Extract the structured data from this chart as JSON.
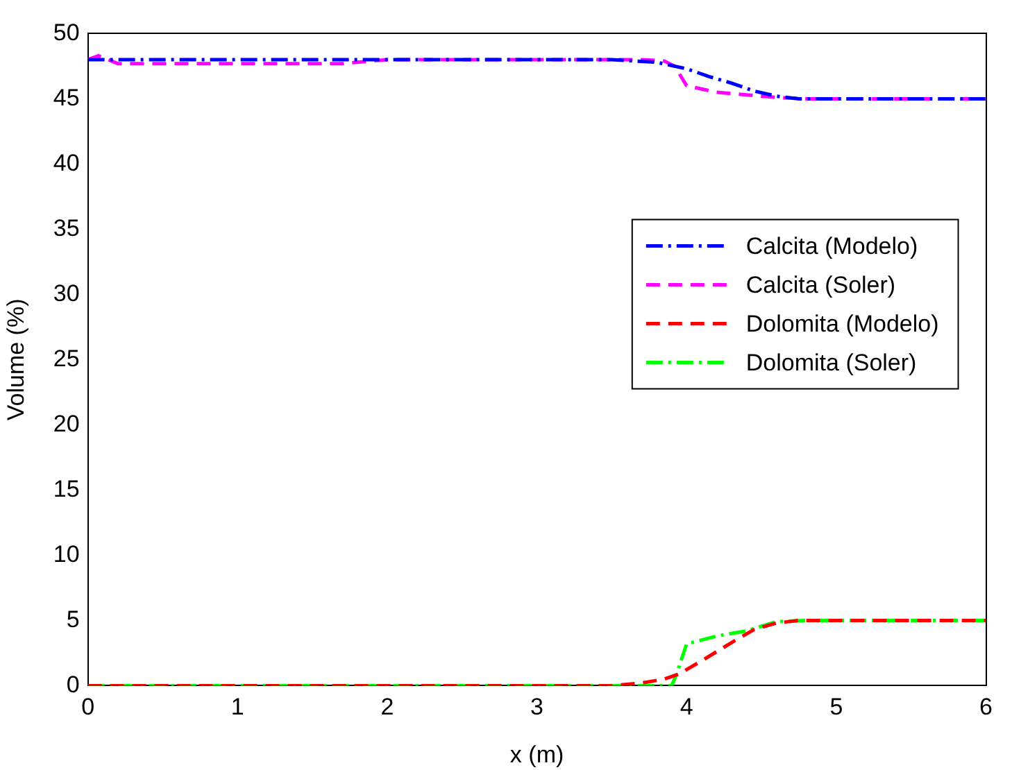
{
  "chart_data": {
    "type": "line",
    "xlabel": "x (m)",
    "ylabel": "Volume (%)",
    "xlim": [
      0,
      6
    ],
    "xticks": [
      0,
      1,
      2,
      3,
      4,
      5,
      6
    ],
    "ylim": [
      0,
      50
    ],
    "yticks": [
      0,
      5,
      10,
      15,
      20,
      25,
      30,
      35,
      40,
      45,
      50
    ],
    "legend": "right",
    "grid": false,
    "marker": "none",
    "series": [
      {
        "name": "Calcita (Modelo)",
        "color": "#0000ff",
        "line_style": "dashdot",
        "x": [
          0,
          0.5,
          1,
          2,
          3,
          3.5,
          3.8,
          4.0,
          4.15,
          4.3,
          4.45,
          4.6,
          4.75,
          5,
          6
        ],
        "values": [
          48,
          48,
          48,
          48,
          48,
          48,
          47.8,
          47.3,
          46.7,
          46.2,
          45.6,
          45.2,
          45,
          45,
          45
        ]
      },
      {
        "name": "Calcita (Soler)",
        "color": "#ff00ff",
        "line_style": "dashed",
        "x": [
          0,
          0.07,
          0.2,
          1,
          1.7,
          2,
          3,
          3.7,
          3.85,
          3.92,
          4.0,
          4.2,
          4.4,
          4.6,
          4.8,
          5,
          6
        ],
        "values": [
          48,
          48.3,
          47.7,
          47.7,
          47.7,
          48,
          48,
          48,
          47.9,
          47.5,
          46,
          45.5,
          45.3,
          45.1,
          45,
          45,
          45
        ]
      },
      {
        "name": "Dolomita (Modelo)",
        "color": "#ff0000",
        "line_style": "dashed",
        "x": [
          0,
          1,
          2,
          3,
          3.5,
          3.7,
          3.85,
          3.95,
          4.1,
          4.3,
          4.45,
          4.6,
          4.75,
          5,
          6
        ],
        "values": [
          0,
          0,
          0,
          0,
          0,
          0.2,
          0.5,
          0.9,
          1.9,
          3.3,
          4.3,
          4.8,
          5,
          5,
          5
        ]
      },
      {
        "name": "Dolomita (Soler)",
        "color": "#00ff00",
        "line_style": "dashdot",
        "x": [
          0,
          1,
          2,
          3,
          3.85,
          3.9,
          3.93,
          4.0,
          4.2,
          4.4,
          4.6,
          4.8,
          5,
          6
        ],
        "values": [
          0,
          0,
          0,
          0,
          0,
          0,
          0.8,
          3.2,
          3.8,
          4.2,
          4.9,
          5,
          5,
          5
        ]
      }
    ]
  }
}
